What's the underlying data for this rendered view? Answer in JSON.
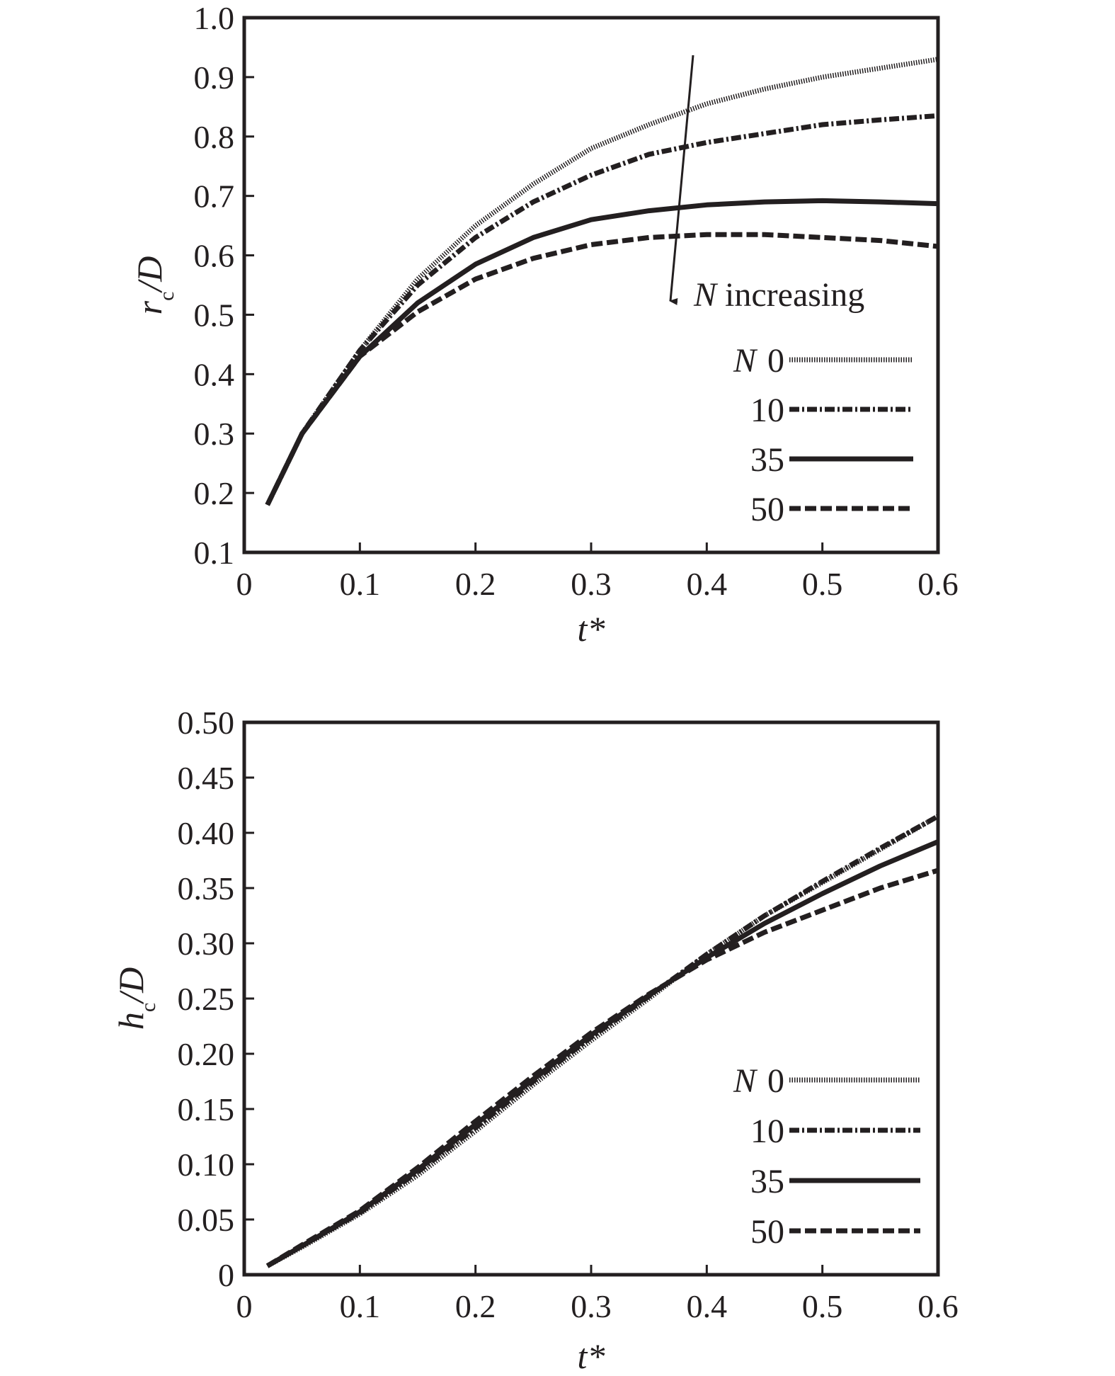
{
  "chart_data": [
    {
      "type": "line",
      "id": "top",
      "xlabel": "t*",
      "ylabel_main": "r",
      "ylabel_sub": "c",
      "ylabel_rest": "/D",
      "xlim": [
        0,
        0.6
      ],
      "ylim": [
        0.1,
        1.0
      ],
      "xticks": [
        "0",
        "0.1",
        "0.2",
        "0.3",
        "0.4",
        "0.5",
        "0.6"
      ],
      "yticks": [
        "0.1",
        "0.2",
        "0.3",
        "0.4",
        "0.5",
        "0.6",
        "0.7",
        "0.8",
        "0.9",
        "1.0"
      ],
      "grid": false,
      "annotation": {
        "italic": "N",
        "text": " increasing"
      },
      "legend_title": "N",
      "x": [
        0.02,
        0.05,
        0.1,
        0.15,
        0.2,
        0.25,
        0.3,
        0.35,
        0.4,
        0.45,
        0.5,
        0.55,
        0.6
      ],
      "series": [
        {
          "name": "0",
          "style": "dotted",
          "values": [
            0.18,
            0.3,
            0.44,
            0.56,
            0.65,
            0.72,
            0.78,
            0.82,
            0.855,
            0.88,
            0.9,
            0.915,
            0.93
          ]
        },
        {
          "name": "10",
          "style": "dashdot",
          "values": [
            0.18,
            0.3,
            0.44,
            0.55,
            0.63,
            0.69,
            0.735,
            0.77,
            0.79,
            0.805,
            0.82,
            0.828,
            0.835
          ]
        },
        {
          "name": "35",
          "style": "solid",
          "values": [
            0.18,
            0.3,
            0.43,
            0.52,
            0.585,
            0.63,
            0.66,
            0.675,
            0.685,
            0.69,
            0.692,
            0.69,
            0.687
          ]
        },
        {
          "name": "50",
          "style": "dashed",
          "values": [
            0.18,
            0.3,
            0.43,
            0.505,
            0.56,
            0.595,
            0.618,
            0.63,
            0.635,
            0.635,
            0.63,
            0.625,
            0.615
          ]
        }
      ]
    },
    {
      "type": "line",
      "id": "bottom",
      "xlabel": "t*",
      "ylabel_main": "h",
      "ylabel_sub": "c",
      "ylabel_rest": "/D",
      "xlim": [
        0,
        0.6
      ],
      "ylim": [
        0,
        0.5
      ],
      "xticks": [
        "0",
        "0.1",
        "0.2",
        "0.3",
        "0.4",
        "0.5",
        "0.6"
      ],
      "yticks": [
        "0",
        "0.05",
        "0.10",
        "0.15",
        "0.20",
        "0.25",
        "0.30",
        "0.35",
        "0.40",
        "0.45",
        "0.50"
      ],
      "grid": false,
      "legend_title": "N",
      "x": [
        0.02,
        0.05,
        0.1,
        0.15,
        0.2,
        0.25,
        0.3,
        0.35,
        0.4,
        0.45,
        0.5,
        0.55,
        0.6
      ],
      "series": [
        {
          "name": "0",
          "style": "dotted",
          "values": [
            0.008,
            0.025,
            0.055,
            0.09,
            0.13,
            0.172,
            0.212,
            0.25,
            0.29,
            0.325,
            0.355,
            0.385,
            0.415
          ]
        },
        {
          "name": "10",
          "style": "dashdot",
          "values": [
            0.008,
            0.026,
            0.056,
            0.093,
            0.133,
            0.175,
            0.215,
            0.252,
            0.29,
            0.325,
            0.356,
            0.386,
            0.415
          ]
        },
        {
          "name": "35",
          "style": "solid",
          "values": [
            0.008,
            0.026,
            0.057,
            0.095,
            0.136,
            0.177,
            0.217,
            0.253,
            0.287,
            0.318,
            0.345,
            0.37,
            0.392
          ]
        },
        {
          "name": "50",
          "style": "dashed",
          "values": [
            0.008,
            0.027,
            0.058,
            0.097,
            0.139,
            0.18,
            0.219,
            0.254,
            0.285,
            0.31,
            0.33,
            0.35,
            0.366
          ]
        }
      ]
    }
  ]
}
